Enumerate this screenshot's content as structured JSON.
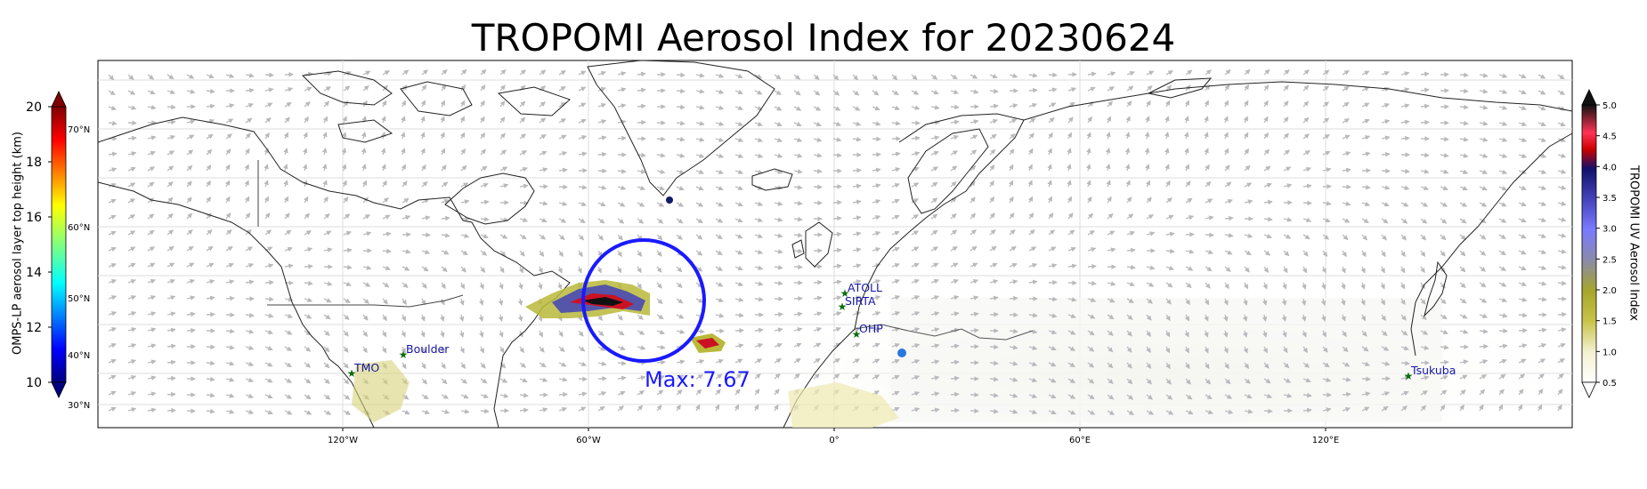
{
  "title": "TROPOMI Aerosol Index for 20230624",
  "colors": {
    "max_circle": "#1a1aff",
    "site_star": "#0b6b0b",
    "site_label": "#1515a8",
    "coast": "#222222",
    "wind_arrow": "#b9b9bd"
  },
  "map": {
    "lon_ticks": [
      "120°W",
      "60°W",
      "0°",
      "60°E",
      "120°E"
    ],
    "lat_ticks": [
      "70°N",
      "60°N",
      "50°N",
      "40°N",
      "30°N"
    ],
    "max_label": "Max: 7.67",
    "sites": [
      {
        "name": "TMO"
      },
      {
        "name": "Boulder"
      },
      {
        "name": "ATOLL"
      },
      {
        "name": "SIRTA"
      },
      {
        "name": "OHP"
      },
      {
        "name": "Tsukuba"
      }
    ]
  },
  "left_colorbar": {
    "label": "OMPS-LP aerosol layer top height (km)",
    "ticks": [
      "20",
      "18",
      "16",
      "14",
      "12",
      "10"
    ],
    "range": [
      10,
      20
    ],
    "colormap": "jet"
  },
  "right_colorbar": {
    "label": "TROPOMI UV Aerosol Index",
    "ticks": [
      "5.0",
      "4.5",
      "4.0",
      "3.5",
      "3.0",
      "2.5",
      "2.0",
      "1.5",
      "1.0",
      "0.5"
    ],
    "range": [
      0.5,
      5.0
    ]
  }
}
